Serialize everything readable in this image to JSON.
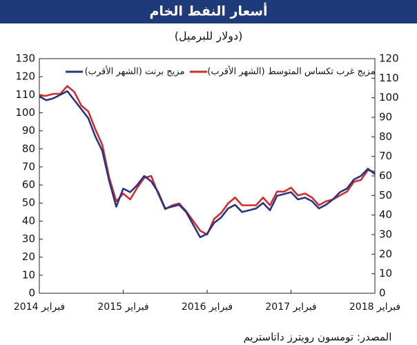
{
  "chart_data": {
    "type": "line",
    "title": "أسعار النفط الخام",
    "subtitle": "(دولار للبرميل)",
    "source": "المصدر: تومسون رويترز داتاستريم",
    "x": [
      "2014-02",
      "2014-03",
      "2014-04",
      "2014-05",
      "2014-06",
      "2014-07",
      "2014-08",
      "2014-09",
      "2014-10",
      "2014-11",
      "2014-12",
      "2015-01",
      "2015-02",
      "2015-03",
      "2015-04",
      "2015-05",
      "2015-06",
      "2015-07",
      "2015-08",
      "2015-09",
      "2015-10",
      "2015-11",
      "2015-12",
      "2016-01",
      "2016-02",
      "2016-03",
      "2016-04",
      "2016-05",
      "2016-06",
      "2016-07",
      "2016-08",
      "2016-09",
      "2016-10",
      "2016-11",
      "2016-12",
      "2017-01",
      "2017-02",
      "2017-03",
      "2017-04",
      "2017-05",
      "2017-06",
      "2017-07",
      "2017-08",
      "2017-09",
      "2017-10",
      "2017-11",
      "2017-12",
      "2018-01",
      "2018-02"
    ],
    "xlim": [
      "2014-02",
      "2018-02"
    ],
    "xticks": [
      {
        "value": "2014-02",
        "label": "فبراير 2014"
      },
      {
        "value": "2015-02",
        "label": "فبراير 2015"
      },
      {
        "value": "2016-02",
        "label": "فبراير 2016"
      },
      {
        "value": "2017-02",
        "label": "فبراير 2017"
      },
      {
        "value": "2018-02",
        "label": "فبراير 2018"
      }
    ],
    "ylim": [
      0,
      130
    ],
    "yticks": [
      0,
      10,
      20,
      30,
      40,
      50,
      60,
      70,
      80,
      90,
      100,
      110,
      120,
      130
    ],
    "y2lim": [
      0,
      120
    ],
    "y2ticks": [
      0,
      10,
      20,
      30,
      40,
      50,
      60,
      70,
      80,
      90,
      100,
      110,
      120
    ],
    "series": [
      {
        "name": "مزيج برنت (الشهر الأقرب)",
        "color": "#27347f",
        "axis": "y",
        "values": [
          109,
          107,
          108,
          110,
          112,
          107,
          102,
          97,
          87,
          79,
          62,
          48,
          58,
          56,
          60,
          65,
          62,
          56,
          47,
          48,
          49,
          45,
          38,
          31,
          33,
          39,
          42,
          47,
          49,
          45,
          46,
          47,
          50,
          46,
          54,
          55,
          56,
          52,
          53,
          51,
          47,
          49,
          52,
          56,
          58,
          63,
          65,
          69,
          66
        ]
      },
      {
        "name": "مزيج غرب تكساس المتوسط (الشهر الأقرب)",
        "color": "#d62a2a",
        "axis": "y2",
        "values": [
          101,
          101,
          102,
          102,
          106,
          103,
          96,
          93,
          84,
          76,
          59,
          47,
          51,
          48,
          54,
          59,
          60,
          51,
          43,
          45,
          46,
          42,
          37,
          32,
          30,
          38,
          41,
          46,
          49,
          45,
          45,
          45,
          49,
          45,
          52,
          52,
          54,
          50,
          51,
          49,
          45,
          47,
          48,
          50,
          52,
          57,
          58,
          63,
          62
        ]
      }
    ]
  }
}
